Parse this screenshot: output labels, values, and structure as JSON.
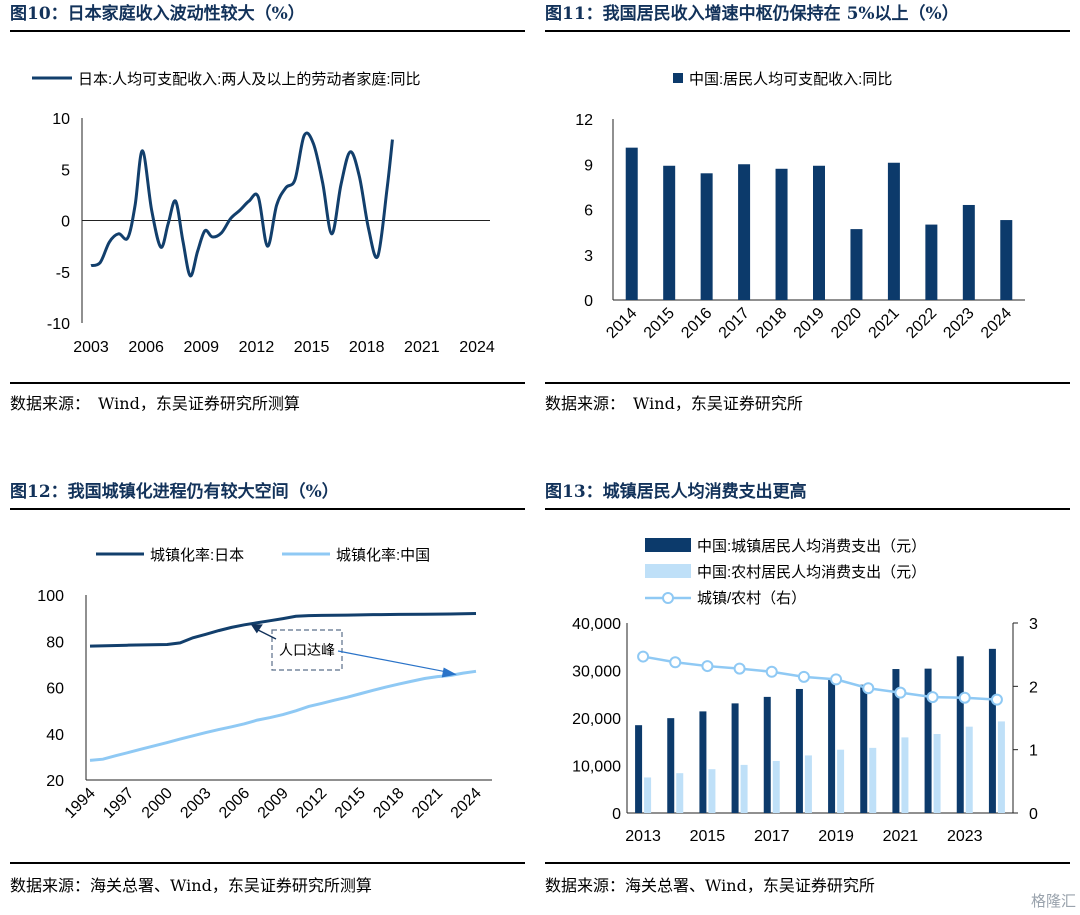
{
  "charts": [
    {
      "title": "图10：日本家庭收入波动性较大（%）",
      "source": "数据来源：　Wind，东吴证券研究所测算",
      "chart_data": {
        "type": "line",
        "legend": "日本:人均可支配收入:两人及以上的劳动者家庭:同比",
        "x_ticks": [
          "2003",
          "2006",
          "2009",
          "2012",
          "2015",
          "2018",
          "2021",
          "2024"
        ],
        "y_ticks": [
          "10",
          "5",
          "0",
          "-5",
          "-10"
        ],
        "ylim": [
          -10,
          10
        ],
        "color": "#123f6c",
        "series": [
          {
            "points": [
              [
                2003.0,
                -4.4
              ],
              [
                2003.5,
                -4.1
              ],
              [
                2004.0,
                -2.1
              ],
              [
                2004.5,
                -1.3
              ],
              [
                2005.0,
                -1.7
              ],
              [
                2005.4,
                1.5
              ],
              [
                2005.8,
                6.8
              ],
              [
                2006.3,
                1.0
              ],
              [
                2006.8,
                -2.6
              ],
              [
                2007.2,
                -0.3
              ],
              [
                2007.6,
                1.9
              ],
              [
                2008.0,
                -2.0
              ],
              [
                2008.4,
                -5.4
              ],
              [
                2008.8,
                -3.0
              ],
              [
                2009.2,
                -1.0
              ],
              [
                2009.6,
                -1.6
              ],
              [
                2010.1,
                -1.2
              ],
              [
                2010.6,
                0.2
              ],
              [
                2011.1,
                1.0
              ],
              [
                2011.6,
                1.9
              ],
              [
                2012.1,
                2.3
              ],
              [
                2012.6,
                -2.5
              ],
              [
                2013.1,
                1.5
              ],
              [
                2013.6,
                3.2
              ],
              [
                2014.1,
                4.0
              ],
              [
                2014.6,
                8.3
              ],
              [
                2015.1,
                7.5
              ],
              [
                2015.6,
                3.7
              ],
              [
                2016.1,
                -1.3
              ],
              [
                2016.6,
                3.5
              ],
              [
                2017.1,
                6.7
              ],
              [
                2017.6,
                4.3
              ],
              [
                2018.1,
                -0.8
              ],
              [
                2018.6,
                -3.5
              ],
              [
                2019.1,
                3.0
              ],
              [
                2019.4,
                7.9
              ]
            ]
          }
        ]
      }
    },
    {
      "title": "图11：我国居民收入增速中枢仍保持在 5%以上（%）",
      "source": "数据来源：　Wind，东吴证券研究所",
      "chart_data": {
        "type": "bar",
        "legend": "中国:居民人均可支配收入:同比",
        "categories": [
          "2014",
          "2015",
          "2016",
          "2017",
          "2018",
          "2019",
          "2020",
          "2021",
          "2022",
          "2023",
          "2024"
        ],
        "values": [
          10.1,
          8.9,
          8.4,
          9.0,
          8.7,
          8.9,
          4.7,
          9.1,
          5.0,
          6.3,
          5.3
        ],
        "y_ticks": [
          "12",
          "9",
          "6",
          "3",
          "0"
        ],
        "ylim": [
          0,
          12
        ],
        "color": "#0c3a6b"
      }
    },
    {
      "title": "图12：我国城镇化进程仍有较大空间（%）",
      "source": "数据来源：海关总署、Wind，东吴证券研究所测算",
      "chart_data": {
        "type": "line",
        "legend": [
          "城镇化率:日本",
          "城镇化率:中国"
        ],
        "x_ticks": [
          "1994",
          "1997",
          "2000",
          "2003",
          "2006",
          "2009",
          "2012",
          "2015",
          "2018",
          "2021",
          "2024"
        ],
        "y_ticks": [
          "100",
          "80",
          "60",
          "40",
          "20"
        ],
        "ylim": [
          20,
          100
        ],
        "annotation": "人口达峰",
        "series": [
          {
            "name": "城镇化率:日本",
            "color": "#123f6c",
            "points": [
              [
                1994,
                77.9
              ],
              [
                1997,
                78.3
              ],
              [
                2000,
                78.6
              ],
              [
                2001,
                79.3
              ],
              [
                2002,
                81.5
              ],
              [
                2003,
                83.0
              ],
              [
                2004,
                84.6
              ],
              [
                2005,
                86.0
              ],
              [
                2006,
                87.1
              ],
              [
                2007,
                88.0
              ],
              [
                2008,
                88.9
              ],
              [
                2009,
                89.8
              ],
              [
                2010,
                90.8
              ],
              [
                2011,
                91.1
              ],
              [
                2012,
                91.2
              ],
              [
                2014,
                91.3
              ],
              [
                2016,
                91.5
              ],
              [
                2018,
                91.6
              ],
              [
                2020,
                91.7
              ],
              [
                2022,
                91.8
              ],
              [
                2024,
                92.0
              ]
            ]
          },
          {
            "name": "城镇化率:中国",
            "color": "#8fc9f4",
            "points": [
              [
                1994,
                28.5
              ],
              [
                1995,
                29.0
              ],
              [
                1996,
                30.5
              ],
              [
                1997,
                31.9
              ],
              [
                1998,
                33.4
              ],
              [
                1999,
                34.8
              ],
              [
                2000,
                36.2
              ],
              [
                2001,
                37.7
              ],
              [
                2002,
                39.1
              ],
              [
                2003,
                40.5
              ],
              [
                2004,
                41.8
              ],
              [
                2005,
                43.0
              ],
              [
                2006,
                44.3
              ],
              [
                2007,
                45.9
              ],
              [
                2008,
                47.0
              ],
              [
                2009,
                48.3
              ],
              [
                2010,
                49.9
              ],
              [
                2011,
                51.8
              ],
              [
                2012,
                53.1
              ],
              [
                2013,
                54.5
              ],
              [
                2014,
                55.8
              ],
              [
                2015,
                57.3
              ],
              [
                2016,
                58.8
              ],
              [
                2017,
                60.2
              ],
              [
                2018,
                61.5
              ],
              [
                2019,
                62.7
              ],
              [
                2020,
                63.9
              ],
              [
                2021,
                64.7
              ],
              [
                2022,
                65.2
              ],
              [
                2023,
                66.2
              ],
              [
                2024,
                67.0
              ]
            ]
          }
        ]
      }
    },
    {
      "title": "图13：城镇居民人均消费支出更高",
      "source": "数据来源：海关总署、Wind，东吴证券研究所",
      "chart_data": {
        "type": "bar",
        "legend": [
          "中国:城镇居民人均消费支出（元）",
          "中国:农村居民人均消费支出（元）",
          "城镇/农村（右）"
        ],
        "categories": [
          "2013",
          "2014",
          "2015",
          "2016",
          "2017",
          "2018",
          "2019",
          "2020",
          "2021",
          "2022",
          "2023",
          "2024"
        ],
        "x_ticks": [
          "2013",
          "2015",
          "2017",
          "2019",
          "2021",
          "2023"
        ],
        "y_ticks_left": [
          "40,000",
          "30,000",
          "20,000",
          "10,000",
          "0"
        ],
        "y_ticks_right": [
          "3",
          "2",
          "1",
          "0"
        ],
        "ylim_left": [
          0,
          40000
        ],
        "ylim_right": [
          0,
          3
        ],
        "series": [
          {
            "name": "中国:城镇居民人均消费支出（元）",
            "color": "#0c3a6b",
            "values": [
              18488,
              19968,
              21392,
              23079,
              24445,
              26112,
              28063,
              27007,
              30307,
              30391,
              32994,
              34557
            ]
          },
          {
            "name": "中国:农村居民人均消费支出（元）",
            "color": "#bfe0f8",
            "values": [
              7485,
              8383,
              9223,
              10130,
              10955,
              12124,
              13328,
              13713,
              15916,
              16632,
              18175,
              19280
            ]
          },
          {
            "name": "城镇/农村（右）",
            "color": "#8fc9f4",
            "values": [
              2.47,
              2.38,
              2.32,
              2.28,
              2.23,
              2.15,
              2.11,
              1.97,
              1.9,
              1.83,
              1.82,
              1.79
            ]
          }
        ]
      }
    }
  ],
  "watermark": "格隆汇"
}
